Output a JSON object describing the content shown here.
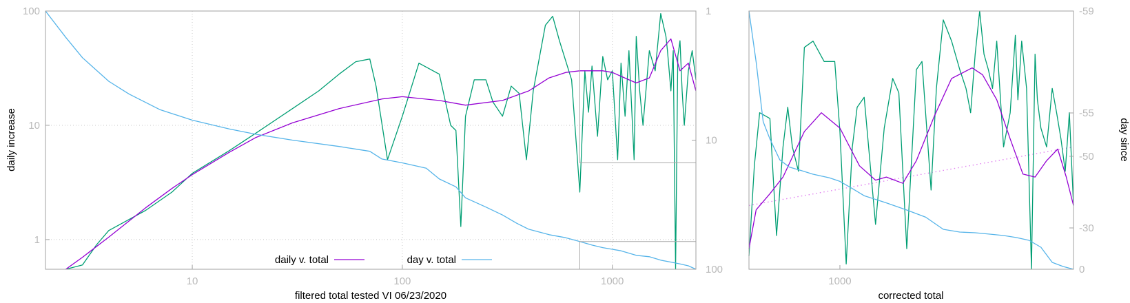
{
  "colors": {
    "daily": "#9400d3",
    "day": "#56b4e9",
    "raw": "#009e73",
    "trend": "#e080f0"
  },
  "chart_data": [
    {
      "type": "line",
      "xlabel": "filtered total tested VI 06/23/2020",
      "ylabel": "daily increase",
      "x_scale": "log",
      "y_scale": "log",
      "xlim": [
        2,
        2500
      ],
      "ylim": [
        0.55,
        100
      ],
      "x_ticks": [
        {
          "value": 10,
          "label": "10"
        },
        {
          "value": 100,
          "label": "100"
        },
        {
          "value": 1000,
          "label": "1000"
        }
      ],
      "y_ticks": [
        {
          "value": 1,
          "label": "1"
        },
        {
          "value": 10,
          "label": "10"
        },
        {
          "value": 100,
          "label": "100"
        }
      ],
      "y2_label": "",
      "y2_scale": "log",
      "y2_reversed": true,
      "y2lim": [
        1,
        100
      ],
      "y2_ticks": [
        {
          "value": 1,
          "label": "1"
        },
        {
          "value": 10,
          "label": "10"
        },
        {
          "value": 100,
          "label": "100"
        }
      ],
      "grid": true,
      "legend_position": "bottom-center",
      "series": [
        {
          "name": "daily v. total",
          "axis": "y",
          "color": "#9400d3",
          "x": [
            2.5,
            3,
            4,
            6,
            8,
            10,
            15,
            20,
            30,
            50,
            80,
            100,
            150,
            200,
            300,
            400,
            500,
            600,
            700,
            900,
            1000,
            1200,
            1300,
            1500,
            1700,
            1900,
            2100,
            2300,
            2500
          ],
          "y": [
            0.55,
            0.7,
            1.05,
            1.9,
            2.8,
            3.7,
            5.8,
            7.8,
            10.5,
            14,
            17,
            17.8,
            16.5,
            15,
            16.5,
            20,
            26,
            29,
            30,
            30,
            29,
            25,
            23.5,
            26,
            45,
            57,
            30,
            35,
            20
          ]
        },
        {
          "name": "",
          "axis": "y",
          "color": "#009e73",
          "x": [
            2.5,
            3,
            3.5,
            4,
            5,
            6,
            8,
            10,
            15,
            20,
            30,
            40,
            50,
            60,
            70,
            75,
            85,
            100,
            120,
            150,
            170,
            180,
            190,
            200,
            220,
            250,
            270,
            300,
            330,
            360,
            390,
            420,
            480,
            520,
            560,
            640,
            700,
            720,
            740,
            770,
            800,
            850,
            900,
            950,
            1000,
            1060,
            1100,
            1150,
            1200,
            1270,
            1300,
            1350,
            1400,
            1500,
            1600,
            1700,
            1800,
            1830,
            1900,
            1950,
            2000,
            2050,
            2100,
            2150,
            2200,
            2300,
            2400,
            2500
          ],
          "y": [
            0.55,
            0.6,
            0.9,
            1.2,
            1.5,
            1.8,
            2.6,
            3.8,
            6,
            8.5,
            14,
            20,
            28,
            36,
            38,
            22,
            5,
            12,
            35,
            28,
            10,
            9,
            1.3,
            12,
            25,
            25,
            16,
            12,
            22,
            19,
            5,
            20,
            75,
            90,
            55,
            25,
            2.6,
            9,
            30,
            13,
            33,
            8,
            40,
            25,
            30,
            5,
            35,
            12,
            45,
            5,
            60,
            20,
            10,
            45,
            30,
            95,
            60,
            45,
            20,
            45,
            0.55,
            40,
            55,
            20,
            10,
            30,
            45,
            25
          ]
        },
        {
          "name": "day v. total",
          "axis": "y2",
          "color": "#56b4e9",
          "x": [
            2,
            2.5,
            3,
            4,
            5,
            7,
            10,
            15,
            20,
            30,
            50,
            70,
            80,
            100,
            130,
            150,
            180,
            200,
            250,
            300,
            350,
            400,
            500,
            600,
            700,
            800,
            900,
            1000,
            1100,
            1200,
            1300,
            1500,
            1700,
            1900,
            2100,
            2300,
            2500
          ],
          "y": [
            1,
            1.6,
            2.3,
            3.5,
            4.4,
            5.8,
            7,
            8.2,
            9,
            10,
            11.2,
            12.2,
            14,
            15,
            16.5,
            20,
            23,
            28,
            33,
            38,
            44,
            49,
            54,
            57,
            61,
            65,
            68,
            70,
            72,
            75,
            78,
            80,
            85,
            88,
            91,
            94,
            100
          ]
        }
      ]
    },
    {
      "type": "line",
      "xlabel": "corrected total",
      "ylabel": "",
      "x_scale": "log",
      "y_scale": "log",
      "xlim": [
        700,
        2500
      ],
      "ylim": [
        4.7,
        100
      ],
      "x_ticks": [
        {
          "value": 1000,
          "label": "1000"
        }
      ],
      "y2_label": "day since",
      "y2_scale": "linear",
      "y2lim": [
        0,
        -59
      ],
      "y2_ticks": [
        {
          "value": -59,
          "label": "-59"
        },
        {
          "value": -55,
          "label": "-55"
        },
        {
          "value": -50,
          "label": "-50"
        },
        {
          "value": -30,
          "label": "-30"
        },
        {
          "value": 0,
          "label": "0"
        }
      ],
      "grid": false,
      "series": [
        {
          "name": "",
          "axis": "y",
          "color": "#9400d3",
          "x": [
            700,
            720,
            760,
            800,
            870,
            930,
            1000,
            1080,
            1150,
            1200,
            1280,
            1350,
            1450,
            1550,
            1680,
            1750,
            1850,
            1950,
            2050,
            2150,
            2250,
            2350,
            2430,
            2500
          ],
          "y": [
            6,
            9.5,
            11.5,
            14,
            24,
            30,
            25,
            16,
            13.5,
            14,
            13,
            17,
            29,
            45,
            51,
            47,
            35,
            22,
            14.5,
            14,
            17,
            19.5,
            14,
            10
          ]
        },
        {
          "name": "",
          "axis": "y",
          "color": "#009e73",
          "x": [
            700,
            715,
            730,
            760,
            780,
            800,
            815,
            830,
            850,
            870,
            900,
            940,
            980,
            1000,
            1025,
            1050,
            1070,
            1100,
            1150,
            1190,
            1230,
            1260,
            1300,
            1350,
            1380,
            1430,
            1460,
            1500,
            1550,
            1600,
            1640,
            1670,
            1700,
            1730,
            1760,
            1790,
            1820,
            1850,
            1900,
            1950,
            1990,
            2010,
            2040,
            2080,
            2120,
            2150,
            2170,
            2200,
            2250,
            2300,
            2340,
            2380,
            2420,
            2460,
            2500
          ],
          "y": [
            5.5,
            16,
            30,
            28,
            7,
            20,
            32,
            20,
            15,
            65,
            70,
            55,
            55,
            24,
            5,
            20,
            32,
            36,
            8,
            25,
            45,
            38,
            6,
            50,
            55,
            12,
            40,
            90,
            70,
            50,
            40,
            30,
            60,
            100,
            60,
            50,
            40,
            70,
            20,
            30,
            75,
            35,
            70,
            40,
            4.7,
            60,
            35,
            25,
            20,
            40,
            30,
            22,
            15,
            30,
            10
          ]
        },
        {
          "name": "",
          "axis": "y",
          "color": "#e080f0",
          "x": [
            700,
            2500
          ],
          "y": [
            10,
            20
          ]
        },
        {
          "name": "",
          "axis": "y2",
          "color": "#56b4e9",
          "x": [
            700,
            720,
            740,
            760,
            790,
            820,
            860,
            900,
            960,
            1000,
            1050,
            1100,
            1200,
            1300,
            1400,
            1500,
            1600,
            1700,
            1800,
            1900,
            2000,
            2100,
            2200,
            2300,
            2400,
            2500
          ],
          "y": [
            -59,
            -57,
            -54,
            -52,
            -49,
            -47,
            -46,
            -45,
            -44,
            -43,
            -41,
            -39,
            -37,
            -35,
            -33,
            -29,
            -27,
            -26.5,
            -25.5,
            -24.5,
            -23,
            -21,
            -16,
            -5,
            -2,
            0
          ]
        }
      ]
    }
  ]
}
